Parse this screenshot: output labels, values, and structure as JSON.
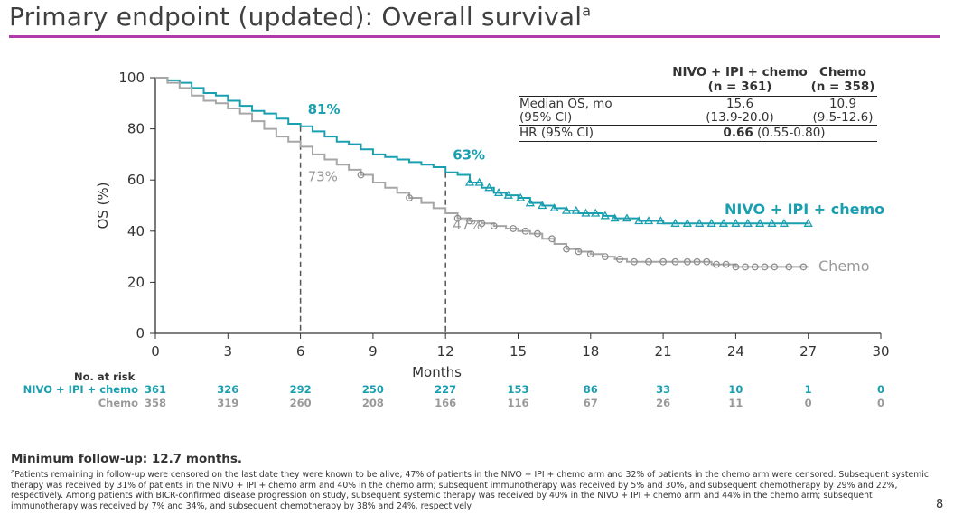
{
  "title": "Primary endpoint (updated): Overall survival",
  "title_sup": "a",
  "colors": {
    "nivo": "#1a9fb0",
    "chemo": "#a6a6a6",
    "rule": "#b03aa9"
  },
  "chart_data": {
    "type": "line",
    "title": "",
    "xlabel": "Months",
    "ylabel": "OS (%)",
    "xlim": [
      0,
      30
    ],
    "ylim": [
      0,
      100
    ],
    "xticks": [
      0,
      3,
      6,
      9,
      12,
      15,
      18,
      21,
      24,
      27,
      30
    ],
    "yticks": [
      0,
      20,
      40,
      60,
      80,
      100
    ],
    "series": [
      {
        "name": "NIVO + IPI + chemo",
        "x": [
          0,
          0.5,
          1,
          1.5,
          2,
          2.5,
          3,
          3.5,
          4,
          4.5,
          5,
          5.5,
          6,
          6.5,
          7,
          7.5,
          8,
          8.5,
          9,
          9.5,
          10,
          10.5,
          11,
          11.5,
          12,
          12.5,
          13,
          13.5,
          14,
          14.5,
          15,
          15.5,
          16,
          16.5,
          17,
          17.5,
          18,
          18.5,
          19,
          19.5,
          20,
          20.5,
          21,
          22,
          23,
          24,
          25,
          26,
          27
        ],
        "y": [
          100,
          99,
          98,
          96,
          94,
          93,
          91,
          89,
          87,
          86,
          84,
          82,
          81,
          79,
          77,
          75,
          74,
          72,
          70,
          69,
          68,
          67,
          66,
          65,
          63,
          62,
          59,
          57,
          55,
          54,
          53,
          51,
          50,
          49,
          48,
          47,
          47,
          46,
          45,
          45,
          44,
          44,
          43,
          43,
          43,
          43,
          43,
          43,
          43
        ],
        "censor_x": [
          13,
          13.4,
          13.8,
          14.2,
          14.6,
          15.1,
          15.5,
          16,
          16.5,
          17,
          17.4,
          17.8,
          18.2,
          18.6,
          19,
          19.5,
          20,
          20.4,
          20.9,
          21.5,
          22,
          22.5,
          23,
          23.5,
          24,
          24.5,
          25,
          25.5,
          26,
          27
        ]
      },
      {
        "name": "Chemo",
        "x": [
          0,
          0.5,
          1,
          1.5,
          2,
          2.5,
          3,
          3.5,
          4,
          4.5,
          5,
          5.5,
          6,
          6.5,
          7,
          7.5,
          8,
          8.5,
          9,
          9.5,
          10,
          10.5,
          11,
          11.5,
          12,
          12.5,
          13,
          13.5,
          14,
          14.5,
          15,
          15.5,
          16,
          16.5,
          17,
          17.5,
          18,
          18.5,
          19,
          19.5,
          20,
          20.5,
          21,
          22,
          23,
          24,
          25,
          26,
          27
        ],
        "y": [
          100,
          98,
          96,
          93,
          91,
          90,
          88,
          86,
          83,
          80,
          77,
          75,
          73,
          70,
          68,
          66,
          64,
          62,
          59,
          57,
          55,
          53,
          51,
          49,
          47,
          45,
          44,
          43,
          42,
          41,
          40,
          39,
          37,
          35,
          33,
          32,
          31,
          30,
          29,
          28,
          28,
          28,
          28,
          28,
          27,
          26,
          26,
          26,
          26
        ],
        "censor_x": [
          8.5,
          10.5,
          12.5,
          13,
          13.5,
          14,
          14.8,
          15.3,
          15.8,
          16.4,
          17,
          17.5,
          18,
          18.6,
          19.2,
          19.8,
          20.4,
          21,
          21.5,
          22,
          22.4,
          22.8,
          23.2,
          23.6,
          24,
          24.4,
          24.8,
          25.2,
          25.6,
          26.2,
          26.8
        ]
      }
    ],
    "annotations": [
      {
        "label": "81%",
        "series": "NIVO + IPI + chemo",
        "x": 6,
        "y": 81
      },
      {
        "label": "73%",
        "series": "Chemo",
        "x": 6,
        "y": 73
      },
      {
        "label": "63%",
        "series": "NIVO + IPI + chemo",
        "x": 12,
        "y": 63
      },
      {
        "label": "47%",
        "series": "Chemo",
        "x": 12,
        "y": 47
      }
    ],
    "reference_lines_x": [
      6,
      12
    ],
    "series_labels": [
      "NIVO + IPI + chemo",
      "Chemo"
    ]
  },
  "stats_table": {
    "col1_header": "NIVO + IPI + chemo",
    "col1_n": "(n = 361)",
    "col2_header": "Chemo",
    "col2_n": "(n = 358)",
    "median_label": "Median OS, mo",
    "ci_label": "(95% CI)",
    "median_nivo": "15.6",
    "ci_nivo": "(13.9-20.0)",
    "median_chemo": "10.9",
    "ci_chemo": "(9.5-12.6)",
    "hr_label": "HR (95% CI)",
    "hr_value": "0.66",
    "hr_ci": "(0.55-0.80)"
  },
  "risk_table": {
    "title": "No. at risk",
    "rows": [
      {
        "name": "NIVO + IPI + chemo",
        "values": [
          "361",
          "326",
          "292",
          "250",
          "227",
          "153",
          "86",
          "33",
          "10",
          "1",
          "0"
        ]
      },
      {
        "name": "Chemo",
        "values": [
          "358",
          "319",
          "260",
          "208",
          "166",
          "116",
          "67",
          "26",
          "11",
          "0",
          "0"
        ]
      }
    ]
  },
  "min_followup": "Minimum follow-up: 12.7 months.",
  "footnote": "aPatients remaining in follow-up were censored on the last date they were known to be alive; 47% of patients in the NIVO + IPI + chemo arm and 32% of patients in the chemo arm were censored. Subsequent systemic therapy was received by 31% of patients in the NIVO + IPI + chemo arm and 40% in the chemo arm; subsequent immunotherapy was received by 5% and 30%, and subsequent chemotherapy by 29% and 22%, respectively. Among patients with BICR-confirmed disease progression on study, subsequent systemic therapy was received by 40% in the NIVO + IPI + chemo arm and 44% in the chemo arm; subsequent immunotherapy was received by 7% and 34%, and subsequent chemotherapy by 38% and 24%, respectively",
  "page_number": "8"
}
